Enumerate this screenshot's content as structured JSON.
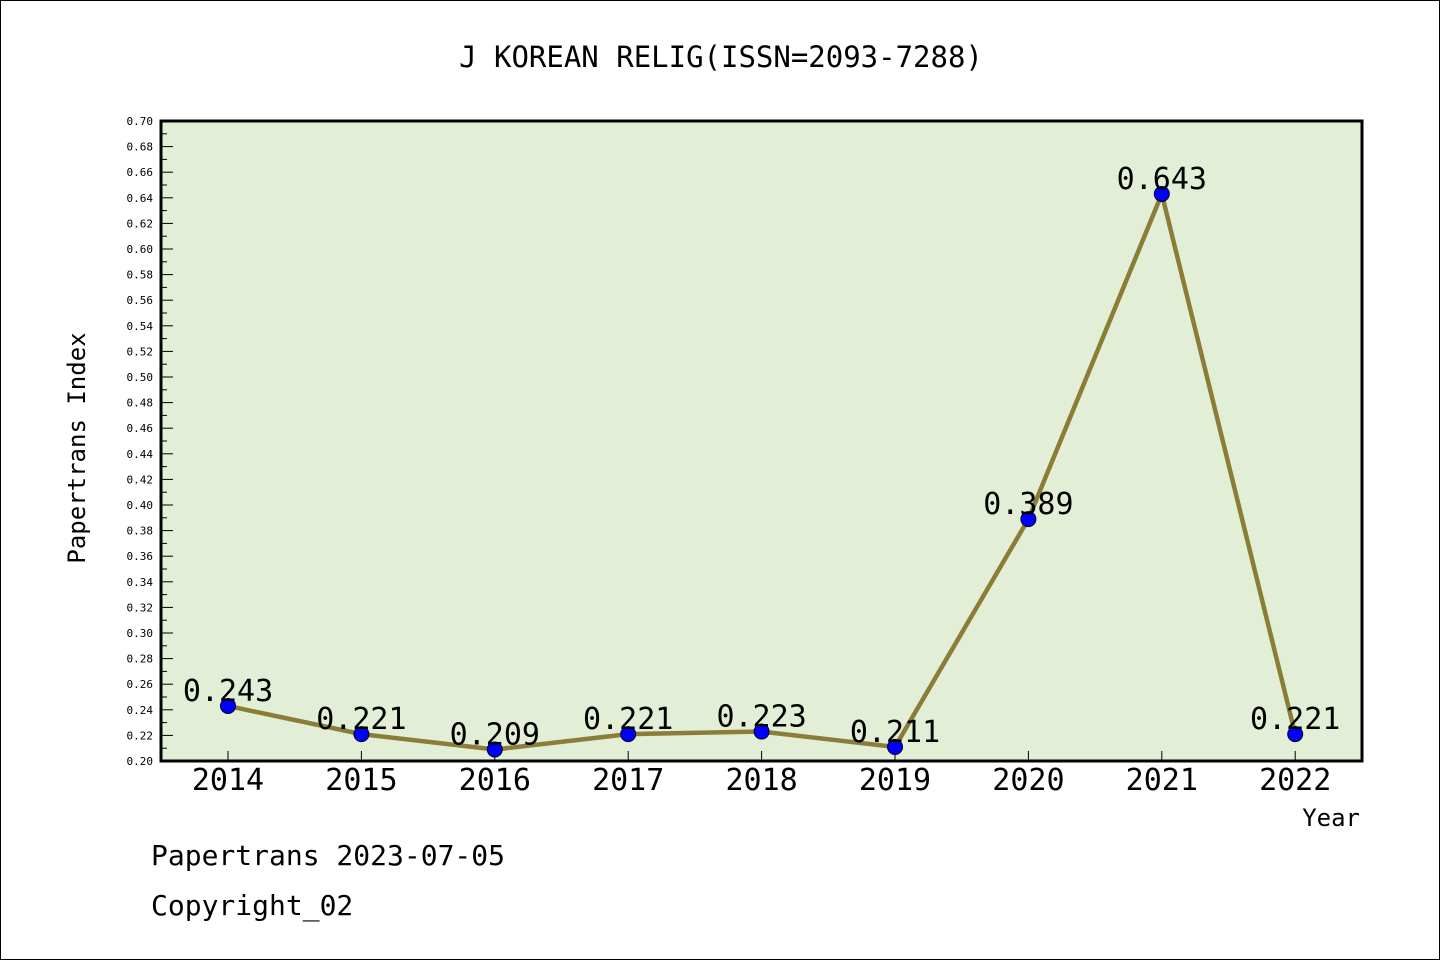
{
  "chart_data": {
    "type": "line",
    "title": "J KOREAN RELIG(ISSN=2093-7288)",
    "xlabel": "Year",
    "ylabel": "Papertrans Index",
    "categories": [
      "2014",
      "2015",
      "2016",
      "2017",
      "2018",
      "2019",
      "2020",
      "2021",
      "2022"
    ],
    "values": [
      0.243,
      0.221,
      0.209,
      0.221,
      0.223,
      0.211,
      0.389,
      0.643,
      0.221
    ],
    "data_labels": [
      "0.243",
      "0.221",
      "0.209",
      "0.221",
      "0.223",
      "0.211",
      "0.389",
      "0.643",
      "0.221"
    ],
    "ylim": [
      0.2,
      0.7
    ],
    "yticks": [
      "0.20",
      "0.22",
      "0.24",
      "0.26",
      "0.28",
      "0.30",
      "0.32",
      "0.34",
      "0.36",
      "0.38",
      "0.40",
      "0.42",
      "0.44",
      "0.46",
      "0.48",
      "0.50",
      "0.52",
      "0.54",
      "0.56",
      "0.58",
      "0.60",
      "0.62",
      "0.64",
      "0.66",
      "0.68",
      "0.70"
    ],
    "grid": false,
    "colors": {
      "plot_background": "#e2efd6",
      "line": "#8b7d37",
      "marker": "#0000ff"
    }
  },
  "footer": {
    "source": "Papertrans 2023-07-05",
    "copyright": "Copyright_02"
  }
}
